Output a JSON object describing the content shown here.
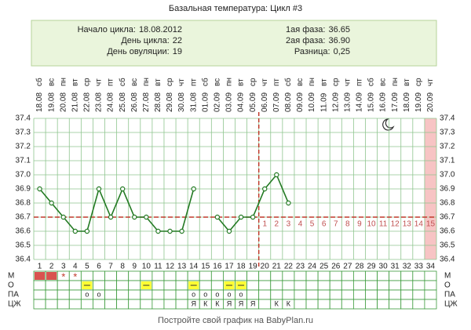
{
  "chart_data": {
    "type": "line",
    "title": "Базальная температура: Цикл #3",
    "info_left": [
      {
        "label": "Начало цикла:",
        "value": "18.08.2012"
      },
      {
        "label": "День цикла:",
        "value": 22
      },
      {
        "label": "День овуляции:",
        "value": 19
      }
    ],
    "info_right": [
      {
        "label": "1ая фаза:",
        "value": "36.65"
      },
      {
        "label": "2ая фаза:",
        "value": "36.90"
      },
      {
        "label": "Разница:",
        "value": "0,25"
      }
    ],
    "weekdays": [
      "сб",
      "вс",
      "пн",
      "вт",
      "ср",
      "чт",
      "пт",
      "сб",
      "вс",
      "пн",
      "вт",
      "ср",
      "чт",
      "пт",
      "сб",
      "вс",
      "пн",
      "вт",
      "ср",
      "чт",
      "пт",
      "сб",
      "вс",
      "пн",
      "вт",
      "ср",
      "чт",
      "пт",
      "сб",
      "вс",
      "пн",
      "вт",
      "ср",
      "чт"
    ],
    "dates": [
      "18.08",
      "19.08",
      "20.08",
      "21.08",
      "22.08",
      "23.08",
      "24.08",
      "25.08",
      "26.08",
      "27.08",
      "28.08",
      "29.08",
      "30.08",
      "31.08",
      "01.09",
      "02.09",
      "03.09",
      "04.09",
      "05.09",
      "06.09",
      "07.09",
      "08.09",
      "09.09",
      "10.09",
      "11.09",
      "12.09",
      "13.09",
      "14.09",
      "15.09",
      "16.09",
      "17.09",
      "18.09",
      "19.09",
      "20.09"
    ],
    "x": [
      1,
      2,
      3,
      4,
      5,
      6,
      7,
      8,
      9,
      10,
      11,
      12,
      13,
      14,
      15,
      16,
      17,
      18,
      19,
      20,
      21,
      22,
      23,
      24,
      25,
      26,
      27,
      28,
      29,
      30,
      31,
      32,
      33,
      34
    ],
    "xlim": [
      0.5,
      34.5
    ],
    "values": [
      36.9,
      36.8,
      36.7,
      36.6,
      36.6,
      36.9,
      36.7,
      36.9,
      36.7,
      36.7,
      36.6,
      36.6,
      36.6,
      36.9,
      null,
      36.7,
      36.6,
      36.7,
      36.7,
      36.9,
      37.0,
      36.8,
      null,
      null,
      null,
      null,
      null,
      null,
      null,
      null,
      null,
      null,
      null,
      null
    ],
    "color": "#237a23",
    "ylim": [
      36.4,
      37.4
    ],
    "yticks": [
      36.4,
      36.5,
      36.6,
      36.7,
      36.8,
      36.9,
      {
        "value": 37.0,
        "label": "37.0"
      },
      37.1,
      37.2,
      37.3,
      37.4
    ],
    "grid": true,
    "cover_line": 36.7,
    "phase_numbers": [
      1,
      2,
      3,
      4,
      5,
      6,
      7,
      8,
      9,
      10,
      11,
      12,
      13,
      14,
      15
    ],
    "symptom_rows": [
      {
        "label": "М",
        "fill_days": [
          1,
          2
        ],
        "fill_color": "#d9534f",
        "marks": [
          {
            "day": 3,
            "text": "*"
          },
          {
            "day": 4,
            "text": "*"
          }
        ]
      },
      {
        "label": "О",
        "fill_days": [
          5,
          10,
          14,
          17,
          18
        ],
        "fill_color": "#ffff33",
        "marks": []
      },
      {
        "label": "ПА",
        "fill_days": [],
        "fill_color": "#ffffff",
        "marks": [
          {
            "day": 5,
            "text": "o"
          },
          {
            "day": 6,
            "text": "o"
          },
          {
            "day": 14,
            "text": "o"
          },
          {
            "day": 15,
            "text": "o"
          },
          {
            "day": 16,
            "text": "o"
          },
          {
            "day": 17,
            "text": "o"
          },
          {
            "day": 18,
            "text": "o"
          }
        ]
      },
      {
        "label": "ЦЖ",
        "fill_days": [],
        "fill_color": "#ffffff",
        "marks": [
          {
            "day": 14,
            "text": "Я"
          },
          {
            "day": 15,
            "text": "К"
          },
          {
            "day": 16,
            "text": "К"
          },
          {
            "day": 17,
            "text": "Я"
          },
          {
            "day": 18,
            "text": "Я"
          },
          {
            "day": 19,
            "text": "Я"
          },
          {
            "day": 21,
            "text": "К"
          },
          {
            "day": 22,
            "text": "К"
          }
        ]
      }
    ],
    "footer": "Постройте свой график на BabyPlan.ru"
  }
}
